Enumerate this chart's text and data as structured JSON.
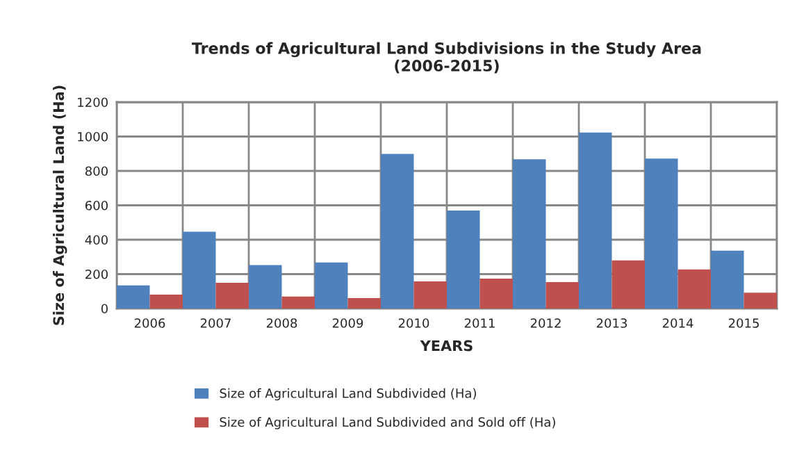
{
  "chart_data": {
    "type": "bar",
    "title": "Trends of Agricultural Land Subdivisions in the Study Area\n(2006-2015)",
    "xlabel": "YEARS",
    "ylabel": "Size of Agricultural Land (Ha)",
    "categories": [
      "2006",
      "2007",
      "2008",
      "2009",
      "2010",
      "2011",
      "2012",
      "2013",
      "2014",
      "2015"
    ],
    "series": [
      {
        "name": "Size of Agricultural Land Subdivided (Ha)",
        "color": "#4f81bd",
        "values": [
          134,
          446,
          253,
          268,
          899,
          570,
          868,
          1023,
          872,
          336
        ]
      },
      {
        "name": "Size of Agricultural Land Subdivided and Sold off (Ha)",
        "color": "#c0504d",
        "values": [
          81,
          149,
          70,
          61,
          158,
          174,
          154,
          280,
          227,
          92
        ]
      }
    ],
    "ylim": [
      0,
      1200
    ],
    "yticks": [
      0,
      200,
      400,
      600,
      800,
      1000,
      1200
    ],
    "grid": true,
    "legend": "bottom"
  }
}
